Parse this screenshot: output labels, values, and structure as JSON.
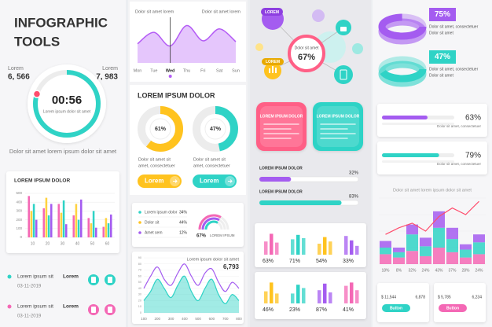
{
  "header": {
    "title": [
      "INFOGRAPHIC",
      "TOOLS"
    ]
  },
  "stats": [
    {
      "label": "Lorem",
      "value": "6, 566"
    },
    {
      "label": "Lorem",
      "value": "7, 983"
    }
  ],
  "timer": {
    "time": "00:56",
    "caption": "Lorem ipsum dolor sit amet",
    "progress": 80
  },
  "note": "Dolor sit amet lorem ipsum dolor sit amet",
  "bar_chart": {
    "type": "bar",
    "title": "LOREM IPSUM DOLOR",
    "categories": [
      "10",
      "20",
      "30",
      "40",
      "50",
      "60"
    ],
    "ylim": [
      0,
      500
    ],
    "yticks": [
      0,
      100,
      200,
      300,
      400,
      500
    ],
    "series": [
      {
        "color": "#f468b5",
        "values": [
          470,
          330,
          380,
          250,
          220,
          120
        ]
      },
      {
        "color": "#ffd23f",
        "values": [
          300,
          450,
          280,
          380,
          160,
          220
        ]
      },
      {
        "color": "#2fd3c6",
        "values": [
          380,
          250,
          420,
          200,
          300,
          160
        ]
      },
      {
        "color": "#a45cf0",
        "values": [
          200,
          380,
          150,
          430,
          110,
          260
        ]
      }
    ]
  },
  "events": [
    {
      "title": "Lorem ipsum sit",
      "date": "03-11-2019",
      "tag": "Lorem",
      "color": "#2fd3c6"
    },
    {
      "title": "Lorem ipsum sit",
      "date": "03-11-2019",
      "tag": "Lorem",
      "color": "#f468b5"
    }
  ],
  "week_chart": {
    "type": "area",
    "labels": [
      "Dolor sit amet lorem",
      "Dolor sit amet lorem"
    ],
    "categories": [
      "Mon",
      "Tue",
      "Wed",
      "Thu",
      "Fri",
      "Sat",
      "Sun"
    ],
    "values": [
      45,
      72,
      40,
      88,
      52,
      80,
      50
    ],
    "ylim": [
      0,
      100
    ],
    "highlight_index": 2,
    "color": "#b45cf5"
  },
  "donut_section": {
    "title": "LOREM IPSUM DOLOR",
    "donuts": [
      {
        "value": 61,
        "value_label": "61%",
        "color": "#ffc31f",
        "text": [
          "Dolor sit amet sit",
          "amet, consectetuer"
        ],
        "button": "Lorem"
      },
      {
        "value": 47,
        "value_label": "47%",
        "color": "#2fd3c6",
        "text": [
          "Dolor sit amet sit",
          "amet, consectetuer"
        ],
        "button": "Lorem"
      }
    ]
  },
  "shares": {
    "items": [
      {
        "name": "Lorem ipsum dolor",
        "label": "34%",
        "color": "#2fd3c6"
      },
      {
        "name": "Dolor sit",
        "label": "44%",
        "color": "#ffc31f"
      },
      {
        "name": "Amet sem",
        "label": "12%",
        "color": "#a45cf0"
      }
    ],
    "gauge": {
      "value": 67,
      "value_label": "67%",
      "caption": "LOREM IPSUM"
    }
  },
  "line_chart": {
    "type": "line",
    "title": "Lorem ipsum dolor sit amet",
    "total": "6,793",
    "x": [
      100,
      150,
      200,
      250,
      300,
      350,
      400,
      450,
      500,
      550,
      600,
      650,
      700,
      750,
      800
    ],
    "xlim": [
      100,
      800
    ],
    "xticks": [
      100,
      200,
      300,
      400,
      500,
      600,
      700,
      800
    ],
    "ylim": [
      0,
      90
    ],
    "yticks": [
      0,
      10,
      20,
      30,
      40,
      50,
      60,
      70,
      80,
      90
    ],
    "series": [
      {
        "color": "#2fd3c6",
        "fill": true,
        "values": [
          20,
          35,
          55,
          40,
          25,
          45,
          60,
          35,
          20,
          40,
          55,
          30,
          15,
          30,
          20
        ]
      },
      {
        "color": "#a45cf0",
        "fill": false,
        "values": [
          40,
          60,
          75,
          55,
          45,
          65,
          80,
          60,
          45,
          65,
          72,
          50,
          35,
          50,
          40
        ]
      }
    ]
  },
  "network": {
    "labels": [
      "LOREM",
      "LOREM"
    ],
    "center_text": "Dolor sit amet",
    "center_value": "67%"
  },
  "cards": [
    {
      "title": "LOREM IPSUM DOLOR",
      "color": "#ff5f86"
    },
    {
      "title": "LOREM IPSUM DOLOR",
      "color": "#2fd3c6"
    }
  ],
  "progress": [
    {
      "title": "LOREM IPSUM DOLOR",
      "value": 32,
      "value_label": "32%",
      "color": "#a45cf0"
    },
    {
      "title": "LOREM IPSUM DOLOR",
      "value": 83,
      "value_label": "83%",
      "color": "#2fd3c6"
    }
  ],
  "mini_bars": {
    "ylim": [
      0,
      100
    ],
    "rows": [
      [
        {
          "color": "#f468b5",
          "bars": [
            60,
            95,
            55
          ],
          "label": "63%"
        },
        {
          "color": "#2fd3c6",
          "bars": [
            70,
            90,
            75
          ],
          "label": "71%"
        },
        {
          "color": "#ffc31f",
          "bars": [
            50,
            80,
            60
          ],
          "label": "54%"
        },
        {
          "color": "#a45cf0",
          "bars": [
            85,
            65,
            40
          ],
          "label": "33%"
        }
      ],
      [
        {
          "color": "#ffc31f",
          "bars": [
            55,
            95,
            45
          ],
          "label": "46%"
        },
        {
          "color": "#2fd3c6",
          "bars": [
            45,
            85,
            70
          ],
          "label": "23%"
        },
        {
          "color": "#a45cf0",
          "bars": [
            60,
            90,
            50
          ],
          "label": "87%"
        },
        {
          "color": "#f468b5",
          "bars": [
            80,
            95,
            60
          ],
          "label": "41%"
        }
      ]
    ]
  },
  "rings": [
    {
      "value": 75,
      "value_label": "75%",
      "color": "#a45cf0",
      "text": [
        "Dolor sit amet, consectetuer",
        "Dolor sit amet"
      ]
    },
    {
      "value": 47,
      "value_label": "47%",
      "color": "#2fd3c6",
      "text": [
        "Dolor sit amet, consectetuer",
        "Dolor sit amet"
      ]
    }
  ],
  "hbars": [
    {
      "value": 63,
      "value_label": "63%",
      "color": "#a45cf0",
      "text": "Dolor sit amet, consectetuer"
    },
    {
      "value": 79,
      "value_label": "79%",
      "color": "#2fd3c6",
      "text": "Dolor sit amet, consectetuer"
    }
  ],
  "combo": {
    "type": "bar",
    "title": "Dolor sit amet lorem ipsum dolor sit amet",
    "categories": [
      "18%",
      "8%",
      "32%",
      "24%",
      "43%",
      "37%",
      "28%",
      "24%"
    ],
    "ylim": [
      0,
      100
    ],
    "series": [
      {
        "color": "#f468b5",
        "values": [
          15,
          10,
          20,
          12,
          25,
          18,
          10,
          15
        ]
      },
      {
        "color": "#2fd3c6",
        "values": [
          10,
          8,
          25,
          15,
          30,
          20,
          12,
          18
        ]
      },
      {
        "color": "#a45cf0",
        "values": [
          10,
          7,
          15,
          13,
          25,
          17,
          8,
          12
        ]
      }
    ],
    "line": {
      "color": "#ff4d6d",
      "values": [
        45,
        55,
        62,
        50,
        72,
        85,
        75,
        95
      ]
    }
  },
  "wallet": [
    {
      "amount": "$ 11,544",
      "count": "6,878",
      "button": "Button",
      "color": "#2fd3c6"
    },
    {
      "amount": "$ 5,785",
      "count": "6,234",
      "button": "Button",
      "color": "#f468b5"
    }
  ]
}
